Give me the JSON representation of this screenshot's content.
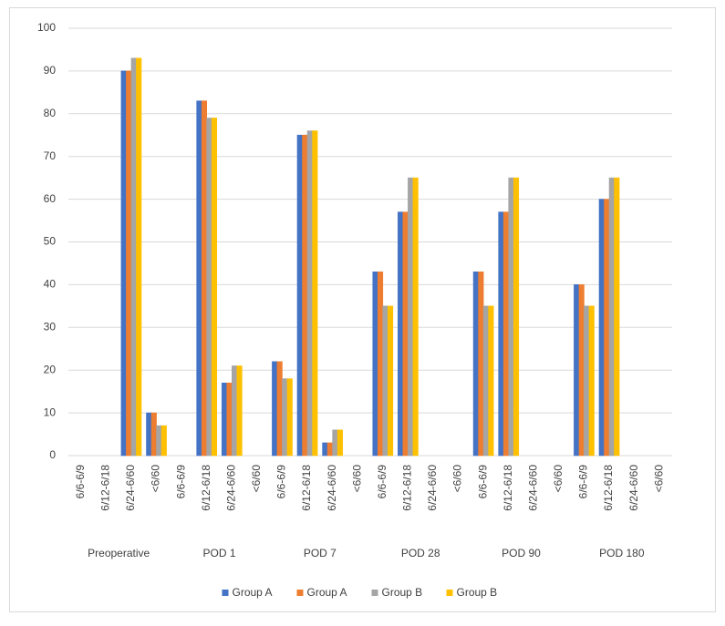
{
  "chart_data": {
    "type": "bar",
    "categories": [
      "6/6-6/9",
      "6/12-6/18",
      "6/24-6/60",
      "<6/60",
      "6/6-6/9",
      "6/12-6/18",
      "6/24-6/60",
      "<6/60",
      "6/6-6/9",
      "6/12-6/18",
      "6/24-6/60",
      "<6/60",
      "6/6-6/9",
      "6/12-6/18",
      "6/24-6/60",
      "<6/60",
      "6/6-6/9",
      "6/12-6/18",
      "6/24-6/60",
      "<6/60",
      "6/6-6/9",
      "6/12-6/18",
      "6/24-6/60",
      "<6/60"
    ],
    "category_groups": [
      "Preoperative",
      "POD 1",
      "POD 7",
      "POD 28",
      "POD 90",
      "POD 180"
    ],
    "series": [
      {
        "name": "Group A",
        "color": "#4472c4",
        "values": [
          0,
          0,
          90,
          10,
          0,
          83,
          17,
          0,
          22,
          75,
          3,
          0,
          43,
          57,
          0,
          0,
          43,
          57,
          0,
          0,
          40,
          60,
          0,
          0
        ]
      },
      {
        "name": "Group A",
        "color": "#ed7d31",
        "values": [
          0,
          0,
          90,
          10,
          0,
          83,
          17,
          0,
          22,
          75,
          3,
          0,
          43,
          57,
          0,
          0,
          43,
          57,
          0,
          0,
          40,
          60,
          0,
          0
        ]
      },
      {
        "name": "Group B",
        "color": "#a5a5a5",
        "values": [
          0,
          0,
          93,
          7,
          0,
          79,
          21,
          0,
          18,
          76,
          6,
          0,
          35,
          65,
          0,
          0,
          35,
          65,
          0,
          0,
          35,
          65,
          0,
          0
        ]
      },
      {
        "name": "Group B",
        "color": "#ffc000",
        "values": [
          0,
          0,
          93,
          7,
          0,
          79,
          21,
          0,
          18,
          76,
          6,
          0,
          35,
          65,
          0,
          0,
          35,
          65,
          0,
          0,
          35,
          65,
          0,
          0
        ]
      }
    ],
    "ylim": [
      0,
      100
    ],
    "yticks": [
      0,
      10,
      20,
      30,
      40,
      50,
      60,
      70,
      80,
      90,
      100
    ],
    "grid": true,
    "legend": "bottom"
  }
}
